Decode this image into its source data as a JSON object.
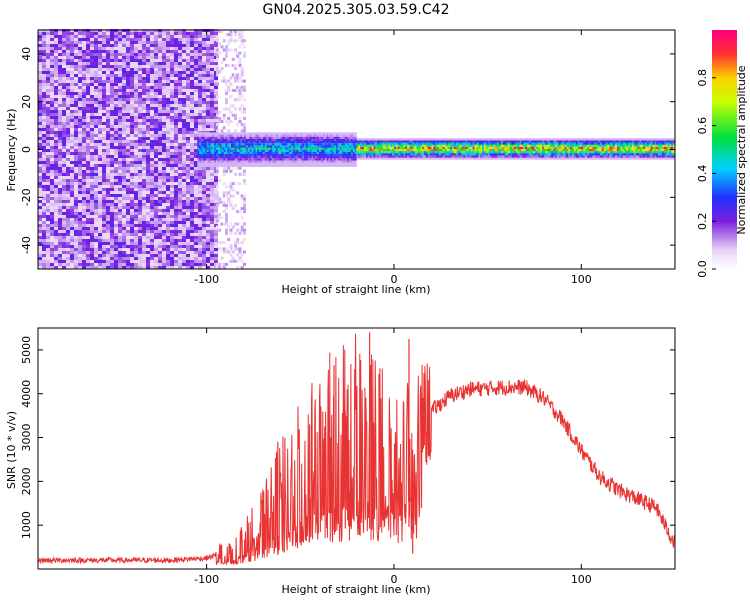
{
  "title": "GN04.2025.305.03.59.C42",
  "colors": {
    "trace": "#e83333",
    "axis": "#000000"
  },
  "chart_data": [
    {
      "type": "heatmap",
      "xlabel": "Height of straight line (km)",
      "ylabel": "Frequency (Hz)",
      "xlim": [
        -190,
        150
      ],
      "ylim": [
        -50,
        50
      ],
      "xticks": [
        -100,
        0,
        100
      ],
      "yticks": [
        -40,
        -20,
        0,
        20,
        40
      ],
      "colorbar": {
        "label": "Normalized spectral amplitude",
        "range": [
          0,
          1
        ],
        "ticks": [
          0.0,
          0.2,
          0.4,
          0.6,
          0.8
        ]
      },
      "regions": [
        {
          "name": "noise",
          "x": [
            -190,
            -95
          ],
          "frequency_band": [
            -50,
            50
          ],
          "amplitude": 0.2
        },
        {
          "name": "transition",
          "x": [
            -95,
            -80
          ],
          "frequency_band": [
            -50,
            50
          ],
          "amplitude": 0.08
        },
        {
          "name": "onset",
          "x": [
            -105,
            -20
          ],
          "frequency_band": [
            -6,
            6
          ],
          "amplitude": 0.5
        },
        {
          "name": "line",
          "x": [
            -20,
            150
          ],
          "frequency_band": [
            -3,
            3
          ],
          "amplitude": 0.9
        }
      ]
    },
    {
      "type": "line",
      "xlabel": "Height of straight line (km)",
      "ylabel": "SNR (10 * v/v)",
      "xlim": [
        -190,
        150
      ],
      "ylim": [
        0,
        5500
      ],
      "xticks": [
        -100,
        0,
        100
      ],
      "yticks": [
        1000,
        2000,
        3000,
        4000,
        5000
      ],
      "envelope": {
        "x": [
          -190,
          -120,
          -100,
          -85,
          -70,
          -60,
          -50,
          -40,
          -30,
          -20,
          -10,
          0,
          10,
          20,
          30,
          40,
          60,
          70,
          80,
          90,
          100,
          110,
          120,
          130,
          140,
          150
        ],
        "y": [
          200,
          200,
          250,
          450,
          1100,
          1700,
          2200,
          2600,
          3000,
          3200,
          3000,
          2800,
          3300,
          3600,
          3950,
          4100,
          4150,
          4150,
          3900,
          3400,
          2700,
          2100,
          1800,
          1600,
          1400,
          550
        ]
      },
      "spikes": [
        {
          "x": -62,
          "y": 2900
        },
        {
          "x": -45,
          "y": 3300
        },
        {
          "x": -32,
          "y": 4650
        },
        {
          "x": -26,
          "y": 3600
        },
        {
          "x": -13,
          "y": 5400
        },
        {
          "x": 8,
          "y": 5250
        },
        {
          "x": 10,
          "y": 350
        },
        {
          "x": -8,
          "y": 4450
        }
      ]
    }
  ]
}
